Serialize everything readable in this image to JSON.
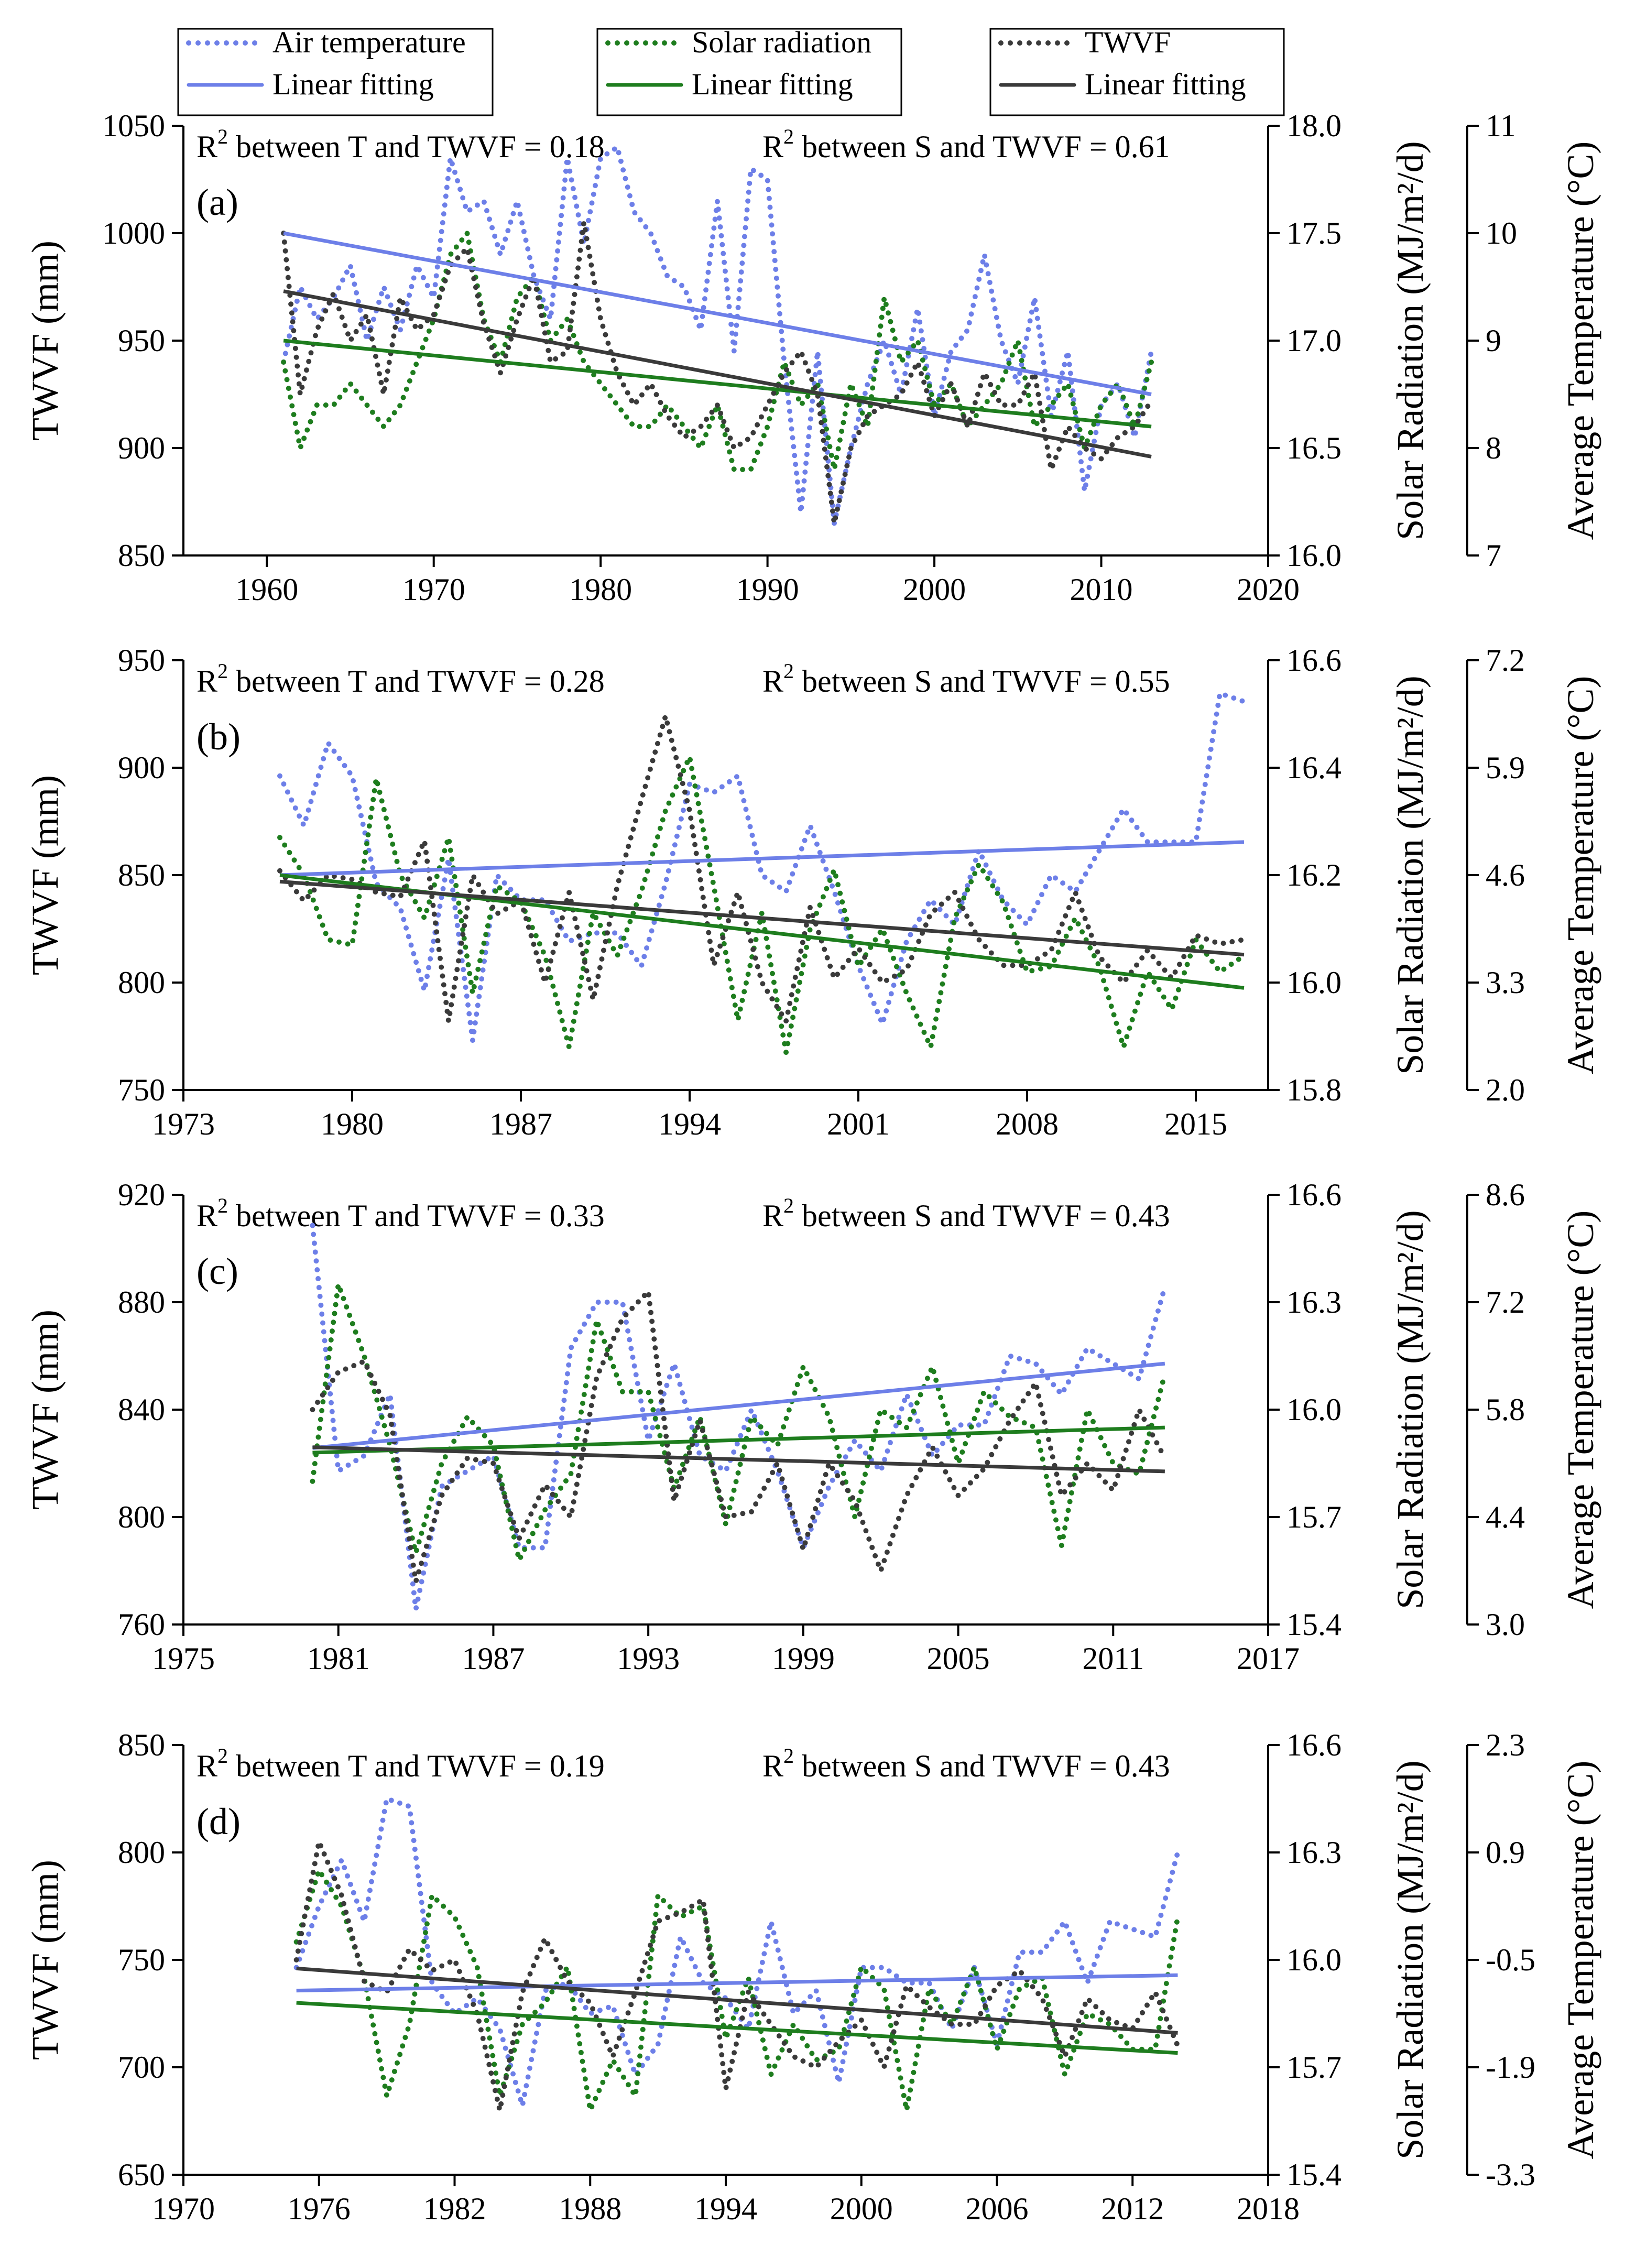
{
  "legend": {
    "items": [
      {
        "key": "T",
        "label": "Air temperature",
        "style": "dotted",
        "color": "#6d7fe8"
      },
      {
        "key": "T_fit",
        "label": "Linear fitting",
        "style": "solid",
        "color": "#6d7fe8"
      },
      {
        "key": "S",
        "label": "Solar radiation",
        "style": "dotted",
        "color": "#1e7d1e"
      },
      {
        "key": "S_fit",
        "label": "Linear fitting",
        "style": "solid",
        "color": "#1e7d1e"
      },
      {
        "key": "W",
        "label": "TWVF",
        "style": "dotted",
        "color": "#3a3a3a"
      },
      {
        "key": "W_fit",
        "label": "Linear fitting",
        "style": "solid",
        "color": "#3a3a3a"
      }
    ]
  },
  "chart_data": [
    {
      "type": "line",
      "panel_label": "(a)",
      "ylabel": "TWVF (mm)",
      "y2label": "Solar Radiation (MJ/m²/d)",
      "y3label": "Average Temperature (°C)",
      "xlim": [
        1955,
        2020
      ],
      "xticks": [
        1960,
        1970,
        1980,
        1990,
        2000,
        2010,
        2020
      ],
      "ylim": [
        850,
        1050
      ],
      "yticks": [
        850,
        900,
        950,
        1000,
        1050
      ],
      "y2lim": [
        16.0,
        18.0
      ],
      "y2ticks": [
        "16.0",
        "16.5",
        "17.0",
        "17.5",
        "18.0"
      ],
      "y3lim": [
        7,
        11
      ],
      "y3ticks": [
        "7",
        "8",
        "9",
        "10",
        "11"
      ],
      "r2_T_prefix": "R",
      "r2_T_text": " between T and TWVF = 0.18",
      "r2_S_prefix": "R",
      "r2_S_text": " between S and TWVF = 0.61",
      "r2_sup": "2",
      "start_year": 1961,
      "series": [
        {
          "name": "Air temperature",
          "key": "T",
          "values": [
            8.8,
            9.5,
            9.2,
            9.4,
            9.7,
            9.0,
            9.5,
            9.1,
            9.7,
            9.4,
            10.7,
            10.2,
            10.3,
            9.8,
            10.3,
            9.6,
            9.2,
            10.7,
            9.9,
            10.7,
            10.8,
            10.2,
            10.0,
            9.6,
            9.5,
            9.1,
            10.3,
            8.9,
            10.6,
            10.5,
            8.8,
            7.4,
            8.9,
            7.3,
            8.0,
            8.6,
            9.0,
            8.5,
            9.3,
            8.3,
            8.9,
            9.1,
            9.8,
            9.0,
            8.6,
            9.4,
            8.3,
            8.9,
            7.6,
            8.4,
            8.6,
            8.1,
            8.9
          ],
          "fit": [
            10.0,
            8.5
          ]
        },
        {
          "name": "Solar radiation",
          "key": "S",
          "values": [
            16.9,
            16.5,
            16.7,
            16.7,
            16.8,
            16.7,
            16.6,
            16.7,
            16.9,
            17.1,
            17.4,
            17.5,
            17.1,
            16.9,
            17.2,
            17.3,
            17.0,
            17.1,
            16.9,
            16.8,
            16.7,
            16.6,
            16.6,
            16.7,
            16.6,
            16.5,
            16.7,
            16.4,
            16.4,
            16.6,
            16.9,
            16.7,
            16.8,
            16.4,
            16.8,
            16.6,
            17.2,
            16.9,
            17.0,
            16.7,
            16.8,
            16.6,
            16.7,
            16.8,
            17.0,
            16.6,
            16.7,
            16.8,
            16.5,
            16.7,
            16.8,
            16.6,
            16.9
          ],
          "fit": [
            17.0,
            16.6
          ]
        },
        {
          "name": "TWVF",
          "key": "W",
          "values": [
            1000,
            925,
            955,
            972,
            950,
            962,
            925,
            970,
            955,
            962,
            985,
            993,
            958,
            935,
            960,
            980,
            940,
            945,
            1005,
            960,
            935,
            920,
            930,
            915,
            905,
            910,
            920,
            900,
            905,
            920,
            935,
            945,
            925,
            865,
            900,
            915,
            920,
            925,
            940,
            915,
            930,
            910,
            935,
            920,
            920,
            935,
            890,
            910,
            900,
            895,
            905,
            910,
            922
          ],
          "fit": [
            973,
            896
          ]
        }
      ]
    },
    {
      "type": "line",
      "panel_label": "(b)",
      "ylabel": "TWVF (mm)",
      "y2label": "Solar Radiation (MJ/m²/d)",
      "y3label": "Average Temperature (°C)",
      "xlim": [
        1973,
        2018
      ],
      "xticks": [
        1973,
        1980,
        1987,
        1994,
        2001,
        2008,
        2015
      ],
      "ylim": [
        750,
        950
      ],
      "yticks": [
        750,
        800,
        850,
        900,
        950
      ],
      "y2lim": [
        15.8,
        16.6
      ],
      "y2ticks": [
        "15.8",
        "16.0",
        "16.2",
        "16.4",
        "16.6"
      ],
      "y3lim": [
        2.0,
        7.2
      ],
      "y3ticks": [
        "2.0",
        "3.3",
        "4.6",
        "5.9",
        "7.2"
      ],
      "r2_T_prefix": "R",
      "r2_T_text": " between T and TWVF = 0.28",
      "r2_S_prefix": "R",
      "r2_S_text": " between S and TWVF = 0.55",
      "r2_sup": "2",
      "start_year": 1977,
      "series": [
        {
          "name": "Air temperature",
          "key": "T",
          "values": [
            5.8,
            5.2,
            6.2,
            5.8,
            4.5,
            4.2,
            3.2,
            4.8,
            2.6,
            4.6,
            4.3,
            4.3,
            3.8,
            3.9,
            3.9,
            3.5,
            4.5,
            5.7,
            5.6,
            5.8,
            4.6,
            4.4,
            5.2,
            4.4,
            3.5,
            2.8,
            3.8,
            4.3,
            4.0,
            4.9,
            4.3,
            4.0,
            4.6,
            4.4,
            4.9,
            5.4,
            5.0,
            5.0,
            5.0,
            6.8,
            6.7
          ],
          "fit": [
            4.6,
            5.0
          ]
        },
        {
          "name": "Solar radiation",
          "key": "S",
          "values": [
            16.27,
            16.2,
            16.08,
            16.07,
            16.38,
            16.2,
            16.12,
            16.27,
            15.98,
            16.18,
            16.15,
            16.05,
            15.88,
            16.13,
            16.05,
            16.17,
            16.32,
            16.42,
            16.18,
            15.93,
            16.13,
            15.87,
            16.1,
            16.21,
            16.03,
            16.1,
            15.98,
            15.88,
            16.12,
            16.22,
            16.15,
            16.02,
            16.03,
            16.12,
            16.03,
            15.88,
            16.02,
            15.95,
            16.08,
            16.02,
            16.05
          ],
          "fit": [
            16.2,
            15.99
          ]
        },
        {
          "name": "TWVF",
          "key": "W",
          "values": [
            852,
            838,
            850,
            848,
            842,
            840,
            866,
            782,
            850,
            832,
            838,
            800,
            842,
            792,
            845,
            885,
            924,
            880,
            808,
            842,
            800,
            782,
            835,
            802,
            816,
            800,
            806,
            832,
            842,
            820,
            808,
            808,
            815,
            842,
            812,
            800,
            815,
            802,
            822,
            818,
            820
          ],
          "fit": [
            847,
            813
          ]
        }
      ]
    },
    {
      "type": "line",
      "panel_label": "(c)",
      "ylabel": "TWVF (mm)",
      "y2label": "Solar Radiation (MJ/m²/d)",
      "y3label": "Average Temperature (°C)",
      "xlim": [
        1975,
        2017
      ],
      "xticks": [
        1975,
        1981,
        1987,
        1993,
        1999,
        2005,
        2011,
        2017
      ],
      "ylim": [
        760,
        920
      ],
      "yticks": [
        760,
        800,
        840,
        880,
        920
      ],
      "y2lim": [
        15.4,
        16.6
      ],
      "y2ticks": [
        "15.4",
        "15.7",
        "16.0",
        "16.3",
        "16.6"
      ],
      "y3lim": [
        3.0,
        8.6
      ],
      "y3ticks": [
        "3.0",
        "4.4",
        "5.8",
        "7.2",
        "8.6"
      ],
      "r2_T_prefix": "R",
      "r2_T_text": " between T and TWVF = 0.33",
      "r2_S_prefix": "R",
      "r2_S_text": " between S and TWVF = 0.43",
      "r2_sup": "2",
      "start_year": 1980,
      "series": [
        {
          "name": "Air temperature",
          "key": "T",
          "values": [
            8.2,
            5.0,
            5.2,
            6.0,
            3.2,
            4.8,
            5.0,
            5.2,
            4.0,
            4.0,
            6.6,
            7.2,
            7.2,
            5.4,
            6.4,
            5.2,
            5.0,
            5.8,
            5.0,
            4.0,
            4.8,
            5.4,
            5.0,
            6.0,
            5.2,
            5.6,
            5.6,
            6.5,
            6.4,
            6.0,
            6.6,
            6.4,
            6.2,
            7.4
          ],
          "fit": [
            5.3,
            6.4
          ]
        },
        {
          "name": "Solar radiation",
          "key": "S",
          "values": [
            15.8,
            16.35,
            16.15,
            15.9,
            15.6,
            15.85,
            15.98,
            15.9,
            15.58,
            15.72,
            15.82,
            16.25,
            16.05,
            16.05,
            15.78,
            15.98,
            15.68,
            15.98,
            15.9,
            16.12,
            15.98,
            15.7,
            16.0,
            15.95,
            16.12,
            15.85,
            16.05,
            15.98,
            15.95,
            15.62,
            16.0,
            15.85,
            15.82,
            16.1
          ],
          "fit": [
            15.88,
            15.95
          ]
        },
        {
          "name": "TWVF",
          "key": "W",
          "values": [
            840,
            854,
            858,
            838,
            776,
            808,
            822,
            820,
            792,
            812,
            800,
            852,
            874,
            884,
            806,
            836,
            800,
            802,
            820,
            788,
            820,
            806,
            780,
            808,
            826,
            808,
            818,
            836,
            850,
            808,
            820,
            810,
            840,
            822
          ],
          "fit": [
            826,
            817
          ]
        }
      ]
    },
    {
      "type": "line",
      "panel_label": "(d)",
      "ylabel": "TWVF (mm)",
      "y2label": "Solar Radiation (MJ/m²/d)",
      "y3label": "Average Temperature (°C)",
      "xlim": [
        1970,
        2018
      ],
      "xticks": [
        1970,
        1976,
        1982,
        1988,
        1994,
        2000,
        2006,
        2012,
        2018
      ],
      "ylim": [
        650,
        850
      ],
      "yticks": [
        650,
        700,
        750,
        800,
        850
      ],
      "y2lim": [
        15.4,
        16.6
      ],
      "y2ticks": [
        "15.4",
        "15.7",
        "16.0",
        "16.3",
        "16.6"
      ],
      "y3lim": [
        -3.3,
        2.3
      ],
      "y3ticks": [
        "-3.3",
        "-1.9",
        "-0.5",
        "0.9",
        "2.3"
      ],
      "r2_T_prefix": "R",
      "r2_T_text": " between T and TWVF = 0.19",
      "r2_S_prefix": "R",
      "r2_S_text": " between S and TWVF = 0.43",
      "r2_sup": "2",
      "start_year": 1975,
      "series": [
        {
          "name": "Air temperature",
          "key": "T",
          "values": [
            -0.6,
            0.2,
            0.8,
            0.0,
            1.6,
            1.5,
            -0.8,
            -1.2,
            -1.0,
            -1.4,
            -2.4,
            -0.9,
            -0.8,
            -1.2,
            -1.1,
            -2.0,
            -1.6,
            -0.2,
            -0.8,
            -1.0,
            -1.4,
            0.0,
            -1.2,
            -0.9,
            -2.1,
            -0.6,
            -0.6,
            -0.8,
            -0.8,
            -1.4,
            -0.6,
            -1.6,
            -0.4,
            -0.4,
            0.0,
            -0.8,
            0.0,
            -0.1,
            -0.2,
            0.9
          ],
          "fit": [
            -0.9,
            -0.7
          ]
        },
        {
          "name": "Solar radiation",
          "key": "S",
          "values": [
            16.05,
            16.25,
            16.15,
            15.95,
            15.62,
            15.82,
            16.18,
            16.12,
            15.98,
            15.62,
            15.82,
            15.88,
            15.98,
            15.58,
            15.72,
            15.62,
            16.18,
            16.12,
            16.15,
            15.78,
            15.95,
            15.68,
            15.82,
            15.72,
            15.75,
            15.98,
            15.92,
            15.58,
            15.92,
            15.82,
            15.98,
            15.75,
            15.92,
            15.95,
            15.68,
            15.85,
            15.82,
            15.75,
            15.75,
            16.12
          ],
          "fit": [
            15.88,
            15.74
          ]
        },
        {
          "name": "TWVF",
          "key": "W",
          "values": [
            750,
            805,
            780,
            740,
            735,
            755,
            745,
            750,
            725,
            680,
            735,
            760,
            740,
            730,
            705,
            735,
            768,
            772,
            778,
            690,
            735,
            720,
            705,
            700,
            712,
            722,
            700,
            738,
            728,
            720,
            720,
            738,
            745,
            732,
            705,
            732,
            722,
            718,
            735,
            710
          ],
          "fit": [
            746,
            716
          ]
        }
      ]
    }
  ]
}
